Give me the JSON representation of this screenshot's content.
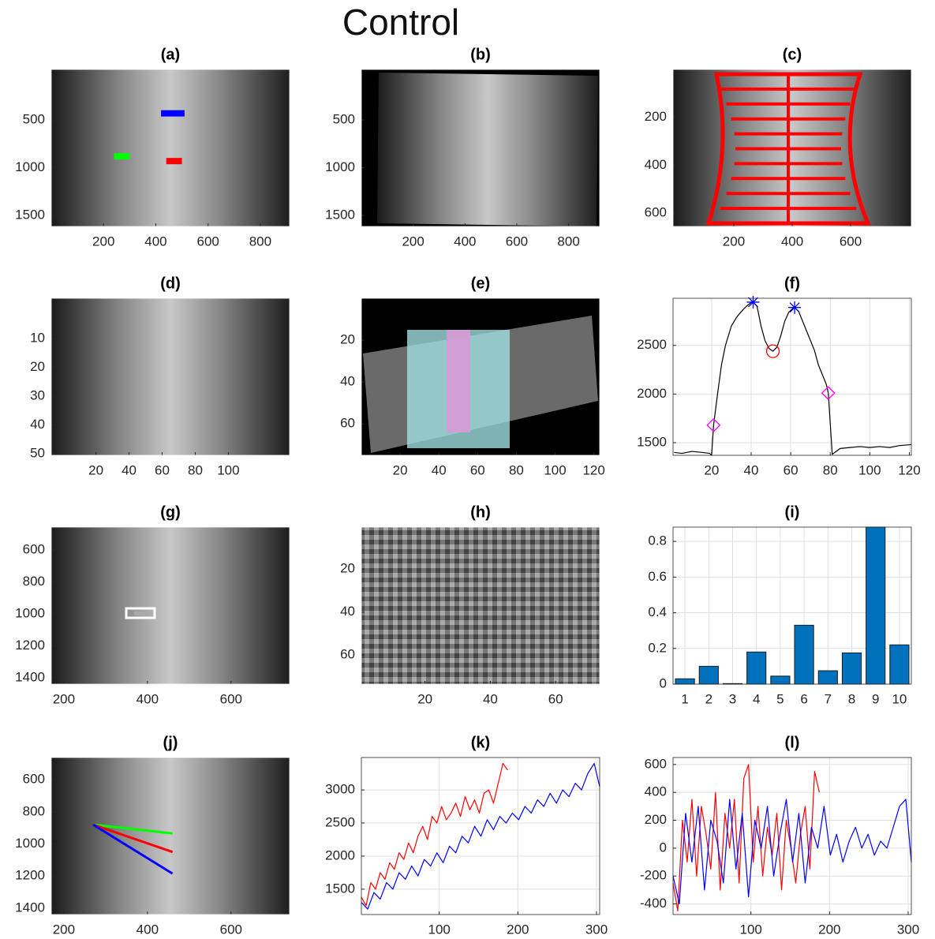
{
  "title": "Control",
  "chart_data": [
    {
      "type": "image",
      "title": "(a)",
      "xlim": [
        0,
        912
      ],
      "ylim": [
        -30,
        1615
      ],
      "yreverse": true,
      "xticks": [
        200,
        400,
        600,
        800
      ],
      "yticks": [
        500,
        1000,
        1500
      ],
      "series": [
        {
          "color": "#0000ff",
          "x": [
            420,
            510
          ],
          "values": [
            430,
            430
          ]
        },
        {
          "color": "#00ff00",
          "x": [
            240,
            300
          ],
          "values": [
            880,
            880
          ]
        },
        {
          "color": "#ff0000",
          "x": [
            440,
            500
          ],
          "values": [
            930,
            930
          ]
        }
      ]
    },
    {
      "type": "image",
      "title": "(b)",
      "xlim": [
        0,
        920
      ],
      "ylim": [
        -29,
        1615
      ],
      "yreverse": true,
      "xticks": [
        200,
        400,
        600,
        800
      ],
      "yticks": [
        500,
        1000,
        1500
      ]
    },
    {
      "type": "image",
      "title": "(c)",
      "xlim": [
        -8,
        808
      ],
      "ylim": [
        0,
        656
      ],
      "yreverse": true,
      "xticks": [
        200,
        400,
        600
      ],
      "yticks": [
        200,
        400,
        600
      ]
    },
    {
      "type": "image",
      "title": "(d)",
      "xlim": [
        -7,
        137
      ],
      "ylim": [
        -4,
        50.5
      ],
      "yreverse": true,
      "xticks": [
        20,
        40,
        60,
        80,
        100
      ],
      "yticks": [
        10,
        20,
        30,
        40,
        50
      ]
    },
    {
      "type": "image",
      "title": "(e)",
      "xlim": [
        0,
        123
      ],
      "ylim": [
        0,
        75
      ],
      "yreverse": true,
      "xticks": [
        20,
        40,
        60,
        80,
        100,
        120
      ],
      "yticks": [
        20,
        40,
        60
      ]
    },
    {
      "type": "line",
      "title": "(f)",
      "xlim": [
        0.5,
        121
      ],
      "ylim": [
        1370,
        2985
      ],
      "xticks": [
        20,
        40,
        60,
        80,
        100,
        120
      ],
      "yticks": [
        1500,
        2000,
        2500
      ],
      "grid": true,
      "series": [
        {
          "color": "#000000",
          "x": [
            1,
            5,
            10,
            15,
            19,
            20,
            21,
            23,
            25,
            27,
            30,
            33,
            36,
            38,
            40,
            41,
            43,
            45,
            47,
            49,
            51,
            53,
            55,
            57,
            59,
            61,
            62,
            64,
            66,
            68,
            70,
            72,
            74,
            76,
            78,
            79,
            80,
            81,
            85,
            90,
            95,
            100,
            105,
            110,
            115,
            121
          ],
          "values": [
            1400,
            1390,
            1410,
            1400,
            1390,
            1370,
            1680,
            2000,
            2300,
            2500,
            2700,
            2800,
            2870,
            2910,
            2940,
            2945,
            2900,
            2700,
            2550,
            2470,
            2440,
            2480,
            2600,
            2750,
            2840,
            2880,
            2890,
            2850,
            2750,
            2650,
            2550,
            2450,
            2300,
            2200,
            2100,
            2010,
            1700,
            1380,
            1440,
            1450,
            1460,
            1450,
            1460,
            1450,
            1470,
            1480
          ]
        }
      ],
      "markers": [
        {
          "shape": "star",
          "color": "#0000ff",
          "x": [
            41,
            62
          ],
          "values": [
            2945,
            2890
          ]
        },
        {
          "shape": "circle",
          "color": "#ff0000",
          "x": [
            51
          ],
          "values": [
            2440
          ]
        },
        {
          "shape": "diamond",
          "color": "#ff00ff",
          "x": [
            21,
            79
          ],
          "values": [
            1680,
            2010
          ]
        }
      ]
    },
    {
      "type": "image",
      "title": "(g)",
      "xlim": [
        170,
        740
      ],
      "ylim": [
        457,
        1440
      ],
      "yreverse": true,
      "xticks": [
        200,
        400,
        600
      ],
      "yticks": [
        600,
        800,
        1000,
        1200,
        1400
      ]
    },
    {
      "type": "image",
      "title": "(h)",
      "xlim": [
        0.5,
        73.5
      ],
      "ylim": [
        0.5,
        73.5
      ],
      "yreverse": true,
      "xticks": [
        20,
        40,
        60
      ],
      "yticks": [
        20,
        40,
        60
      ]
    },
    {
      "type": "bar",
      "title": "(i)",
      "categories": [
        "1",
        "2",
        "3",
        "4",
        "5",
        "6",
        "7",
        "8",
        "9",
        "10"
      ],
      "values": [
        0.03,
        0.1,
        0.003,
        0.18,
        0.045,
        0.33,
        0.075,
        0.175,
        0.88,
        0.22
      ],
      "color": "#0072bd",
      "ylim": [
        0,
        0.88
      ],
      "yticks": [
        0,
        0.2,
        0.4,
        0.6,
        0.8
      ],
      "grid": true
    },
    {
      "type": "image",
      "title": "(j)",
      "xlim": [
        170,
        740
      ],
      "ylim": [
        462,
        1440
      ],
      "yreverse": true,
      "xticks": [
        200,
        400,
        600
      ],
      "yticks": [
        600,
        800,
        1000,
        1200,
        1400
      ],
      "series": [
        {
          "color": "#00ff00",
          "x": [
            270,
            460
          ],
          "values": [
            880,
            935
          ]
        },
        {
          "color": "#ff0000",
          "x": [
            270,
            460
          ],
          "values": [
            880,
            1050
          ]
        },
        {
          "color": "#0000ff",
          "x": [
            270,
            460
          ],
          "values": [
            880,
            1185
          ]
        }
      ]
    },
    {
      "type": "line",
      "title": "(k)",
      "xlim": [
        1,
        304
      ],
      "ylim": [
        1117,
        3490
      ],
      "xticks": [
        100,
        200,
        300
      ],
      "yticks": [
        1500,
        2000,
        2500,
        3000
      ],
      "grid": true,
      "series": [
        {
          "color": "#ff0000",
          "x": [
            1,
            7,
            13,
            19,
            25,
            31,
            37,
            43,
            49,
            55,
            61,
            67,
            73,
            79,
            85,
            91,
            97,
            103,
            109,
            115,
            121,
            127,
            133,
            139,
            145,
            151,
            157,
            163,
            169,
            175,
            181,
            187
          ],
          "values": [
            1380,
            1250,
            1600,
            1500,
            1750,
            1650,
            1900,
            1800,
            2050,
            1950,
            2200,
            2050,
            2300,
            2450,
            2250,
            2600,
            2500,
            2750,
            2550,
            2650,
            2800,
            2600,
            2900,
            2700,
            2850,
            2650,
            2950,
            3000,
            2800,
            3100,
            3400,
            3300
          ]
        },
        {
          "color": "#0000ff",
          "x": [
            1,
            9,
            17,
            25,
            33,
            41,
            49,
            57,
            65,
            73,
            81,
            89,
            97,
            105,
            113,
            121,
            129,
            137,
            145,
            153,
            161,
            169,
            177,
            185,
            193,
            201,
            209,
            217,
            225,
            233,
            241,
            249,
            257,
            265,
            273,
            281,
            289,
            297,
            304
          ],
          "values": [
            1300,
            1200,
            1450,
            1350,
            1600,
            1500,
            1750,
            1650,
            1850,
            1700,
            1950,
            1850,
            2050,
            1900,
            2150,
            2050,
            2300,
            2200,
            2450,
            2300,
            2550,
            2400,
            2600,
            2500,
            2650,
            2550,
            2750,
            2650,
            2850,
            2750,
            2950,
            2800,
            3000,
            2900,
            3100,
            3000,
            3250,
            3400,
            3050
          ]
        }
      ]
    },
    {
      "type": "line",
      "title": "(l)",
      "xlim": [
        1,
        304
      ],
      "ylim": [
        -476,
        650
      ],
      "xticks": [
        100,
        200,
        300
      ],
      "yticks": [
        -400,
        -200,
        0,
        200,
        400,
        600
      ],
      "grid": true,
      "series": [
        {
          "color": "#ff0000",
          "x": [
            1,
            7,
            13,
            19,
            25,
            31,
            37,
            43,
            49,
            55,
            61,
            67,
            73,
            79,
            85,
            91,
            97,
            103,
            109,
            115,
            121,
            127,
            133,
            139,
            145,
            151,
            157,
            163,
            169,
            175,
            181,
            187
          ],
          "values": [
            -250,
            -450,
            200,
            -100,
            350,
            -200,
            300,
            100,
            -150,
            400,
            -300,
            250,
            0,
            350,
            -250,
            500,
            600,
            -100,
            300,
            -200,
            150,
            -50,
            250,
            -300,
            200,
            0,
            -250,
            100,
            300,
            -150,
            550,
            400
          ]
        },
        {
          "color": "#0000ff",
          "x": [
            1,
            9,
            17,
            25,
            33,
            41,
            49,
            57,
            65,
            73,
            81,
            89,
            97,
            105,
            113,
            121,
            129,
            137,
            145,
            153,
            161,
            169,
            177,
            185,
            193,
            201,
            209,
            217,
            225,
            233,
            241,
            249,
            257,
            265,
            273,
            281,
            289,
            297,
            304
          ],
          "values": [
            -200,
            -400,
            250,
            -100,
            300,
            -300,
            200,
            50,
            -250,
            350,
            -150,
            250,
            -350,
            200,
            0,
            300,
            -200,
            100,
            350,
            -100,
            250,
            -250,
            150,
            0,
            300,
            -50,
            100,
            -100,
            50,
            150,
            0,
            100,
            -50,
            50,
            0,
            150,
            300,
            350,
            -100
          ]
        }
      ]
    }
  ]
}
